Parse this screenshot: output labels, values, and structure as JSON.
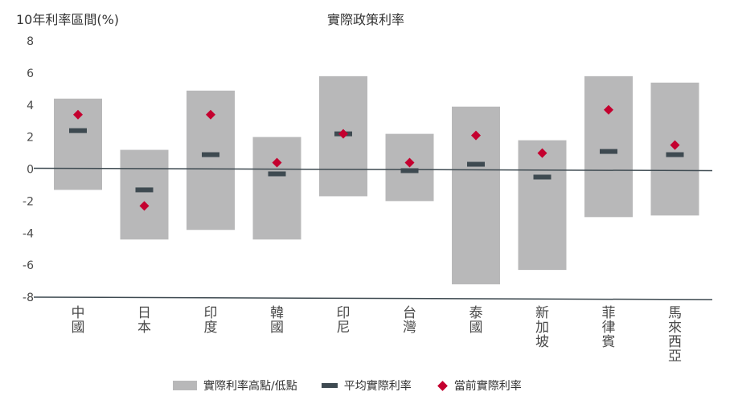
{
  "chart_data": {
    "type": "bar",
    "title": "實際政策利率",
    "ylabel": "10年利率區間(%)",
    "xlabel": "",
    "ylim": [
      -8,
      8
    ],
    "yticks": [
      8,
      6,
      4,
      2,
      0,
      -2,
      -4,
      -6,
      -8
    ],
    "categories": [
      "中國",
      "日本",
      "印度",
      "韓國",
      "印尼",
      "台灣",
      "泰國",
      "新加坡",
      "菲律賓",
      "馬來西亞"
    ],
    "series": [
      {
        "name": "實際利率高點/低點",
        "high": [
          4.4,
          1.2,
          4.9,
          2.0,
          5.8,
          2.2,
          3.9,
          1.8,
          5.8,
          5.4
        ],
        "low": [
          -1.3,
          -4.4,
          -3.8,
          -4.4,
          -1.7,
          -2.0,
          -7.2,
          -6.3,
          -3.0,
          -2.9
        ]
      },
      {
        "name": "平均實際利率",
        "values": [
          2.4,
          -1.3,
          0.9,
          -0.3,
          2.2,
          -0.1,
          0.3,
          -0.5,
          1.1,
          0.9
        ]
      },
      {
        "name": "當前實際利率",
        "values": [
          3.4,
          -2.3,
          3.4,
          0.4,
          2.2,
          0.4,
          2.1,
          1.0,
          3.7,
          1.5
        ]
      }
    ],
    "grid": false,
    "legend_position": "bottom",
    "colors": {
      "range": "#b8b8b9",
      "average": "#3e4a51",
      "current": "#c4002f"
    }
  }
}
